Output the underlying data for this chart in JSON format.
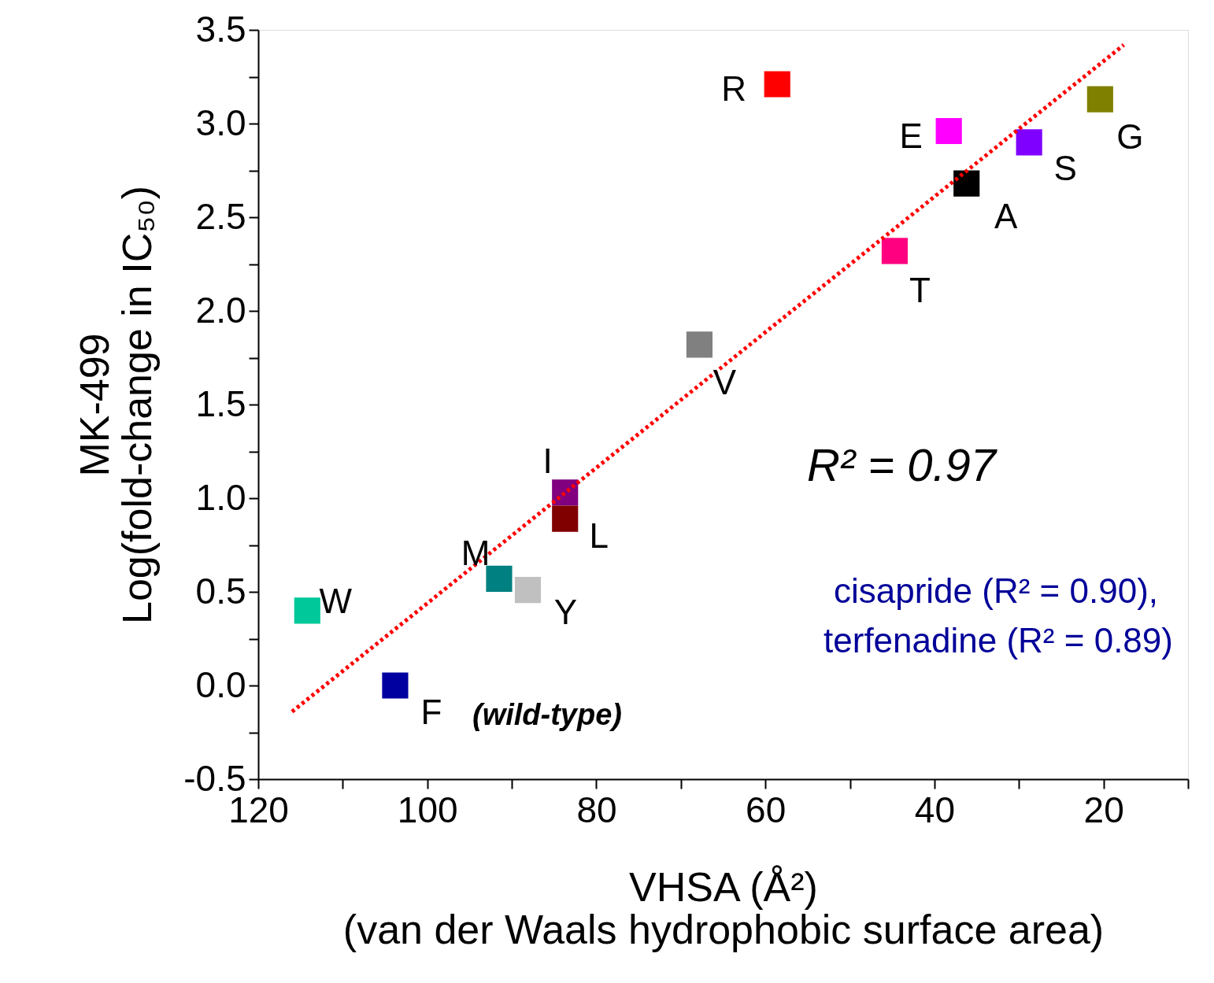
{
  "chart_data": {
    "type": "scatter",
    "xlabel": "VHSA (Å²)\n(van der Waals hydrophobic surface area)",
    "ylabel": "MK-499\nLog(fold-change in IC₅₀)",
    "xlim": [
      120,
      10
    ],
    "ylim": [
      -0.5,
      3.5
    ],
    "xticks": [
      120,
      {
        "value": 110,
        "label": null
      },
      100,
      {
        "value": 90,
        "label": null
      },
      80,
      {
        "value": 70,
        "label": null
      },
      60,
      {
        "value": 50,
        "label": null
      },
      40,
      {
        "value": 30,
        "label": null
      },
      20,
      {
        "value": 10,
        "label": null
      }
    ],
    "yticks": [
      {
        "value": -0.5,
        "label": "-0.5"
      },
      {
        "value": -0.25,
        "label": null
      },
      {
        "value": 0,
        "label": "0.0"
      },
      {
        "value": 0.25,
        "label": null
      },
      {
        "value": 0.5,
        "label": "0.5"
      },
      {
        "value": 0.75,
        "label": null
      },
      {
        "value": 1,
        "label": "1.0"
      },
      {
        "value": 1.25,
        "label": null
      },
      {
        "value": 1.5,
        "label": "1.5"
      },
      {
        "value": 1.75,
        "label": null
      },
      {
        "value": 2,
        "label": "2.0"
      },
      {
        "value": 2.25,
        "label": null
      },
      {
        "value": 2.5,
        "label": "2.5"
      },
      {
        "value": 2.75,
        "label": null
      },
      {
        "value": 3,
        "label": "3.0"
      },
      {
        "value": 3.25,
        "label": null
      },
      {
        "value": 3.5,
        "label": "3.5"
      }
    ],
    "grid": false,
    "series": [
      {
        "marker": "square",
        "x": [
          58.6,
          38.3,
          20.4,
          28.8,
          36.2,
          44.7,
          67.8,
          83.7,
          83.7,
          91.5,
          88.1,
          114.2,
          103.8
        ],
        "values": [
          3.21,
          2.96,
          3.13,
          2.9,
          2.68,
          2.32,
          1.82,
          1.03,
          0.89,
          0.57,
          0.51,
          0.4,
          0.0
        ],
        "colors": [
          "#ff0000",
          "#ff00ff",
          "#808000",
          "#8000ff",
          "#000000",
          "#ff0080",
          "#808080",
          "#800080",
          "#800000",
          "#008080",
          "#c0c0c0",
          "#00c89a",
          "#0000a0"
        ]
      },
      {
        "type": "line",
        "line_style": "dotted",
        "color": "#ff0000",
        "x": [
          116.0,
          17.6
        ],
        "values": [
          -0.14,
          3.42
        ]
      }
    ],
    "annotations": [
      {
        "text": "R",
        "x": 58.6,
        "y": 3.21
      },
      {
        "text": "E",
        "x": 38.3,
        "y": 2.96
      },
      {
        "text": "G",
        "x": 20.4,
        "y": 3.13
      },
      {
        "text": "S",
        "x": 28.8,
        "y": 2.9
      },
      {
        "text": "A",
        "x": 36.2,
        "y": 2.68
      },
      {
        "text": "T",
        "x": 44.7,
        "y": 2.32
      },
      {
        "text": "V",
        "x": 67.8,
        "y": 1.82
      },
      {
        "text": "I",
        "x": 83.7,
        "y": 1.03
      },
      {
        "text": "L",
        "x": 83.7,
        "y": 0.89
      },
      {
        "text": "M",
        "x": 91.5,
        "y": 0.57
      },
      {
        "text": "Y",
        "x": 88.1,
        "y": 0.51
      },
      {
        "text": "W",
        "x": 114.2,
        "y": 0.4
      },
      {
        "text": "F",
        "x": 103.8,
        "y": 0.0
      },
      "(wild-type)",
      "R² = 0.97",
      "cisapride (R² = 0.90),",
      "terfenadine (R² = 0.89)"
    ]
  }
}
